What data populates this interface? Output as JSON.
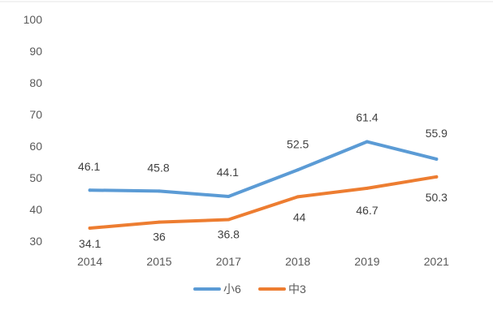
{
  "chart_data": {
    "type": "line",
    "title": "",
    "xlabel": "",
    "ylabel": "",
    "categories": [
      "2014",
      "2015",
      "2017",
      "2018",
      "2019",
      "2021"
    ],
    "y_ticks": [
      "100",
      "90",
      "80",
      "70",
      "60",
      "50",
      "40",
      "30"
    ],
    "ylim": [
      30,
      100
    ],
    "grid": false,
    "legend_position": "bottom",
    "series": [
      {
        "name": "小6",
        "color": "#5B9BD5",
        "values": [
          46.1,
          45.8,
          44.1,
          52.5,
          61.4,
          55.9
        ],
        "labels": [
          "46.1",
          "45.8",
          "44.1",
          "52.5",
          "61.4",
          "55.9"
        ]
      },
      {
        "name": "中3",
        "color": "#ED7D31",
        "values": [
          34.1,
          36,
          36.8,
          44,
          46.7,
          50.3
        ],
        "labels": [
          "34.1",
          "36",
          "36.8",
          "44",
          "46.7",
          "50.3"
        ]
      }
    ]
  }
}
